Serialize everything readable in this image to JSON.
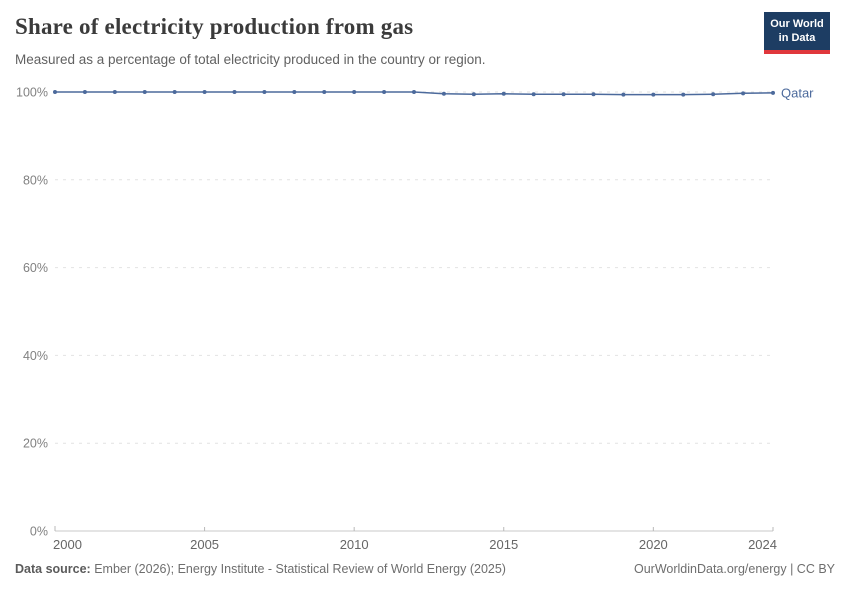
{
  "header": {
    "title": "Share of electricity production from gas",
    "subtitle": "Measured as a percentage of total electricity produced in the country or region.",
    "logo": {
      "line1": "Our World",
      "line2": "in Data"
    }
  },
  "footer": {
    "source_label": "Data source:",
    "source_text": " Ember (2026); Energy Institute - Statistical Review of World Energy (2025)",
    "attribution": "OurWorldinData.org/energy | CC BY"
  },
  "colors": {
    "series": "#4c6a9c",
    "logo_bg": "#1d3d63",
    "logo_red": "#e0373c",
    "grid": "#e2e2e2",
    "axis": "#c8c8c8",
    "tick": "#b9b9b9",
    "ytick_label": "#818181",
    "xtick_label": "#666666"
  },
  "chart_data": {
    "type": "line",
    "title": "Share of electricity production from gas",
    "xlabel": "",
    "ylabel": "",
    "xlim": [
      2000,
      2024
    ],
    "ylim": [
      0,
      100
    ],
    "yticks": [
      0,
      20,
      40,
      60,
      80,
      100
    ],
    "ytick_suffix": "%",
    "xticks": [
      2000,
      2005,
      2010,
      2015,
      2020,
      2024
    ],
    "grid": "horizontal-dashed",
    "legend": "end-of-line-label",
    "series": [
      {
        "name": "Qatar",
        "color": "#4c6a9c",
        "x": [
          2000,
          2001,
          2002,
          2003,
          2004,
          2005,
          2006,
          2007,
          2008,
          2009,
          2010,
          2011,
          2012,
          2013,
          2014,
          2015,
          2016,
          2017,
          2018,
          2019,
          2020,
          2021,
          2022,
          2023,
          2024
        ],
        "values": [
          100,
          100,
          100,
          100,
          100,
          100,
          100,
          100,
          100,
          100,
          100,
          100,
          100,
          99.6,
          99.5,
          99.6,
          99.5,
          99.5,
          99.5,
          99.4,
          99.4,
          99.4,
          99.5,
          99.7,
          99.8
        ]
      }
    ]
  }
}
